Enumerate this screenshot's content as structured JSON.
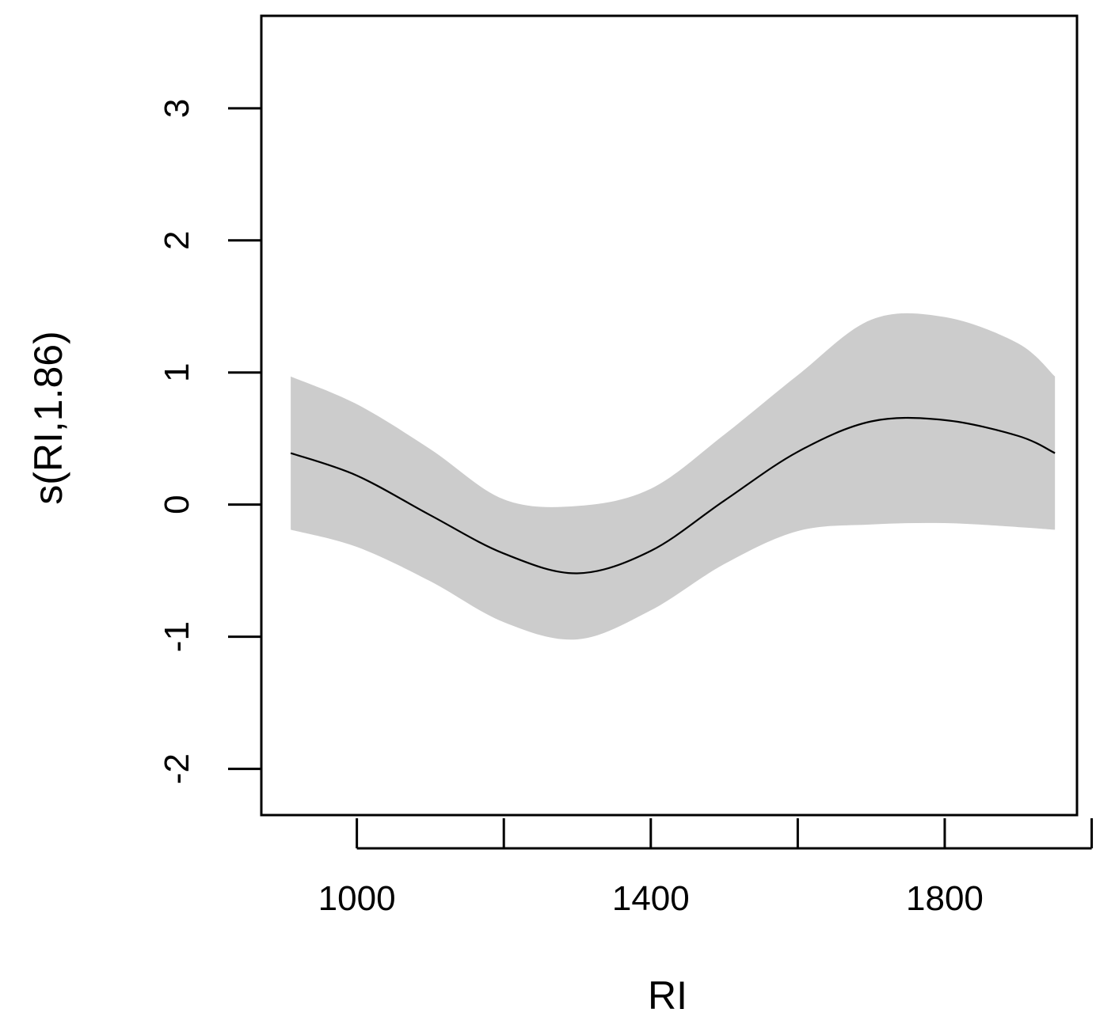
{
  "chart_data": {
    "type": "line",
    "title": "",
    "xlabel": "RI",
    "ylabel": "s(RI,1.86)",
    "xlim": [
      870,
      1980
    ],
    "ylim": [
      -2.35,
      3.7
    ],
    "x_ticks": [
      1000,
      1200,
      1400,
      1600,
      1800,
      2000
    ],
    "x_tick_labels": [
      "1000",
      "",
      "1400",
      "",
      "1800",
      ""
    ],
    "y_ticks": [
      -2,
      -1,
      0,
      1,
      2,
      3
    ],
    "y_tick_labels": [
      "-2",
      "-1",
      "0",
      "1",
      "2",
      "3"
    ],
    "grid": false,
    "colors": {
      "line": "#000000",
      "band": "#cccccc",
      "frame": "#000000"
    },
    "series": [
      {
        "x": [
          910,
          1000,
          1100,
          1200,
          1300,
          1400,
          1500,
          1600,
          1700,
          1800,
          1900,
          1950
        ],
        "y": [
          0.39,
          0.22,
          -0.08,
          -0.37,
          -0.52,
          -0.35,
          0.03,
          0.4,
          0.63,
          0.64,
          0.52,
          0.39
        ],
        "lower": [
          -0.19,
          -0.32,
          -0.58,
          -0.89,
          -1.02,
          -0.8,
          -0.45,
          -0.2,
          -0.15,
          -0.14,
          -0.17,
          -0.19
        ],
        "upper": [
          0.97,
          0.76,
          0.42,
          0.04,
          -0.01,
          0.12,
          0.53,
          0.98,
          1.4,
          1.42,
          1.22,
          0.97
        ]
      }
    ]
  }
}
